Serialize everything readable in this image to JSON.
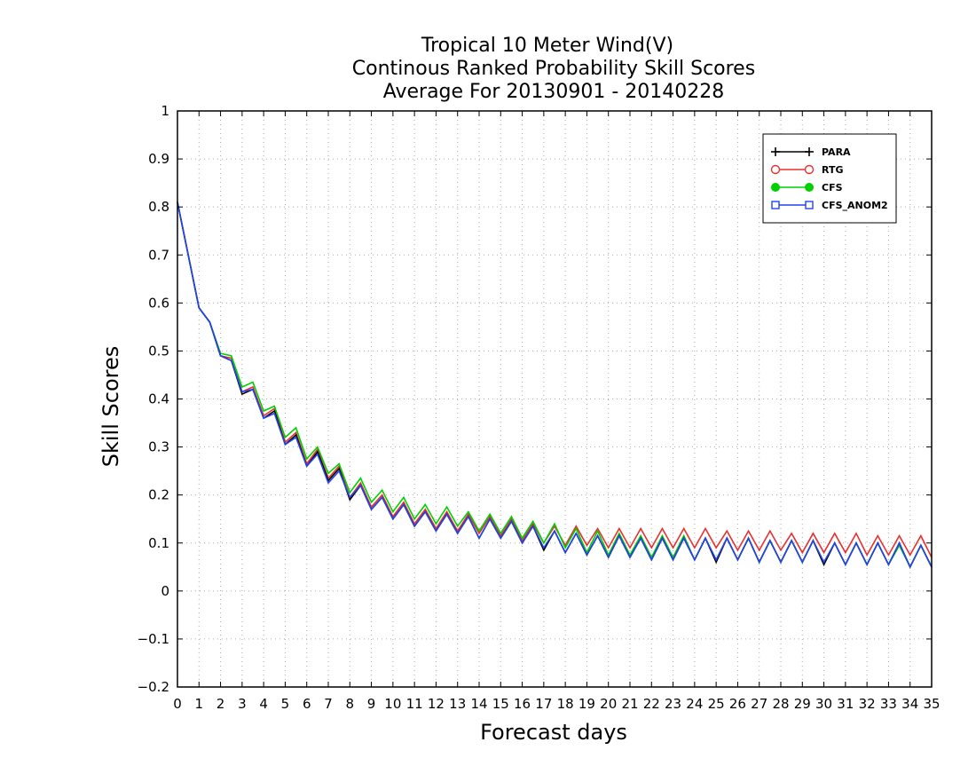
{
  "chart_data": {
    "type": "line",
    "title": [
      "Tropical 10 Meter Wind(V)",
      "Continous Ranked Probability Skill Scores",
      "Average For 20130901 - 20140228"
    ],
    "xlabel": "Forecast days",
    "ylabel": "Skill Scores",
    "xlim": [
      0,
      35
    ],
    "ylim": [
      -0.2,
      1
    ],
    "x_ticks": [
      0,
      1,
      2,
      3,
      4,
      5,
      6,
      7,
      8,
      9,
      10,
      11,
      12,
      13,
      14,
      15,
      16,
      17,
      18,
      19,
      20,
      21,
      22,
      23,
      24,
      25,
      26,
      27,
      28,
      29,
      30,
      31,
      32,
      33,
      34,
      35
    ],
    "y_ticks": [
      "-0.2",
      "-0.1",
      "0",
      "0.1",
      "0.2",
      "0.3",
      "0.4",
      "0.5",
      "0.6",
      "0.7",
      "0.8",
      "0.9",
      "1"
    ],
    "grid": true,
    "legend_position": "top-right",
    "x": [
      0,
      0.5,
      1,
      1.5,
      2,
      2.5,
      3,
      3.5,
      4,
      4.5,
      5,
      5.5,
      6,
      6.5,
      7,
      7.5,
      8,
      8.5,
      9,
      9.5,
      10,
      10.5,
      11,
      11.5,
      12,
      12.5,
      13,
      13.5,
      14,
      14.5,
      15,
      15.5,
      16,
      16.5,
      17,
      17.5,
      18,
      18.5,
      19,
      19.5,
      20,
      20.5,
      21,
      21.5,
      22,
      22.5,
      23,
      23.5,
      24,
      24.5,
      25,
      25.5,
      26,
      26.5,
      27,
      27.5,
      28,
      28.5,
      29,
      29.5,
      30,
      30.5,
      31,
      31.5,
      32,
      32.5,
      33,
      33.5,
      34,
      34.5,
      35
    ],
    "series": [
      {
        "name": "PARA",
        "color": "#000000",
        "marker": "plus",
        "values": [
          0.81,
          0.7,
          0.59,
          0.56,
          0.49,
          0.48,
          0.41,
          0.42,
          0.36,
          0.375,
          0.305,
          0.325,
          0.26,
          0.29,
          0.23,
          0.255,
          0.19,
          0.22,
          0.17,
          0.195,
          0.15,
          0.18,
          0.135,
          0.165,
          0.125,
          0.16,
          0.12,
          0.155,
          0.11,
          0.15,
          0.11,
          0.145,
          0.1,
          0.135,
          0.085,
          0.125,
          0.08,
          0.12,
          0.075,
          0.115,
          0.07,
          0.115,
          0.07,
          0.11,
          0.065,
          0.11,
          0.065,
          0.11,
          0.065,
          0.11,
          0.06,
          0.11,
          0.065,
          0.11,
          0.06,
          0.105,
          0.06,
          0.105,
          0.06,
          0.105,
          0.055,
          0.1,
          0.055,
          0.1,
          0.055,
          0.1,
          0.055,
          0.1,
          0.05,
          0.095,
          0.05
        ]
      },
      {
        "name": "RTG",
        "color": "#e8302e",
        "marker": "circle",
        "values": [
          0.81,
          0.7,
          0.59,
          0.56,
          0.49,
          0.485,
          0.415,
          0.425,
          0.365,
          0.38,
          0.31,
          0.33,
          0.265,
          0.295,
          0.235,
          0.26,
          0.195,
          0.225,
          0.175,
          0.2,
          0.155,
          0.185,
          0.14,
          0.17,
          0.13,
          0.165,
          0.125,
          0.16,
          0.12,
          0.155,
          0.115,
          0.15,
          0.105,
          0.14,
          0.1,
          0.135,
          0.095,
          0.135,
          0.095,
          0.13,
          0.09,
          0.13,
          0.09,
          0.13,
          0.09,
          0.13,
          0.09,
          0.13,
          0.09,
          0.13,
          0.09,
          0.125,
          0.085,
          0.125,
          0.085,
          0.125,
          0.085,
          0.12,
          0.08,
          0.12,
          0.08,
          0.12,
          0.08,
          0.12,
          0.075,
          0.115,
          0.075,
          0.115,
          0.075,
          0.115,
          0.07
        ]
      },
      {
        "name": "CFS",
        "color": "#00d000",
        "marker": "dot",
        "values": [
          0.81,
          0.7,
          0.59,
          0.56,
          0.495,
          0.49,
          0.425,
          0.435,
          0.375,
          0.385,
          0.32,
          0.34,
          0.275,
          0.3,
          0.245,
          0.265,
          0.205,
          0.235,
          0.185,
          0.21,
          0.165,
          0.195,
          0.15,
          0.18,
          0.14,
          0.175,
          0.135,
          0.165,
          0.125,
          0.16,
          0.12,
          0.155,
          0.11,
          0.145,
          0.1,
          0.14,
          0.09,
          0.13,
          0.08,
          0.125,
          0.075,
          0.12,
          0.075,
          0.115,
          0.07,
          0.115,
          0.07,
          0.115,
          0.065,
          0.11,
          0.065,
          0.11,
          0.065,
          0.11,
          0.06,
          0.105,
          0.06,
          0.105,
          0.06,
          0.105,
          0.055,
          0.1,
          0.055,
          0.1,
          0.055,
          0.1,
          0.055,
          0.095,
          0.05,
          0.095,
          0.05
        ]
      },
      {
        "name": "CFS_ANOM2",
        "color": "#2244ee",
        "marker": "square",
        "values": [
          0.81,
          0.7,
          0.59,
          0.56,
          0.49,
          0.48,
          0.415,
          0.42,
          0.36,
          0.37,
          0.305,
          0.32,
          0.26,
          0.285,
          0.225,
          0.25,
          0.195,
          0.22,
          0.17,
          0.195,
          0.15,
          0.18,
          0.135,
          0.165,
          0.125,
          0.16,
          0.12,
          0.155,
          0.11,
          0.15,
          0.11,
          0.145,
          0.1,
          0.135,
          0.09,
          0.125,
          0.08,
          0.12,
          0.075,
          0.115,
          0.07,
          0.115,
          0.07,
          0.11,
          0.065,
          0.11,
          0.065,
          0.11,
          0.065,
          0.11,
          0.065,
          0.11,
          0.065,
          0.11,
          0.06,
          0.105,
          0.06,
          0.105,
          0.06,
          0.105,
          0.06,
          0.1,
          0.055,
          0.1,
          0.055,
          0.1,
          0.055,
          0.1,
          0.05,
          0.095,
          0.05
        ]
      }
    ]
  }
}
